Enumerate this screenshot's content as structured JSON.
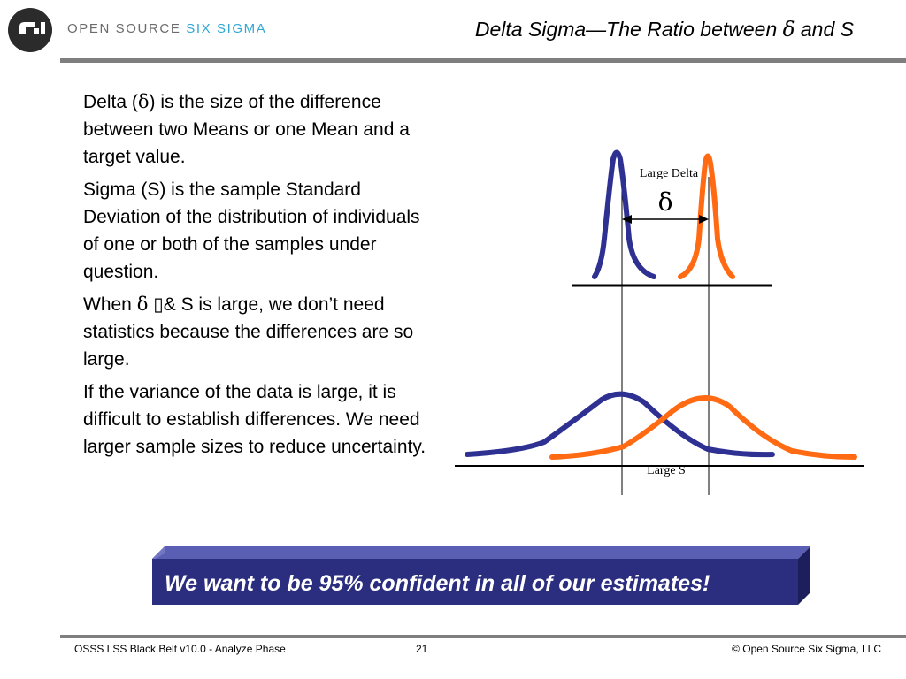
{
  "header": {
    "brand_prefix": "OPEN SOURCE ",
    "brand_accent": "SIX SIGMA",
    "title_pre": "Delta Sigma—The Ratio between ",
    "title_symbol": "δ",
    "title_post": " and S"
  },
  "body": {
    "p1_pre": "Delta (",
    "p1_symbol": "δ",
    "p1_post": ") is the size of the difference between two Means or one Mean and a target value.",
    "p2": "Sigma (S) is the sample Standard Deviation of the distribution of individuals of one or both of the samples under question.",
    "p3_pre": "When ",
    "p3_symbol": "δ",
    "p3_post": " ▯& S is large, we don’t need statistics because the differences are so large.",
    "p4": "If the variance of the data is large, it is difficult to establish differences. We need larger sample sizes to reduce uncertainty."
  },
  "diagram": {
    "large_delta_label": "Large Delta",
    "delta_symbol": "δ",
    "large_s_label": "Large S",
    "colors": {
      "blue": "#2e3192",
      "orange": "#ff6a13"
    }
  },
  "banner": {
    "text": "We want to be 95% confident in all of our estimates!",
    "color": "#2b2d7f"
  },
  "footer": {
    "left": "OSSS LSS Black Belt v10.0 - Analyze Phase",
    "page_number": "21",
    "right": "© Open Source Six Sigma, LLC"
  }
}
